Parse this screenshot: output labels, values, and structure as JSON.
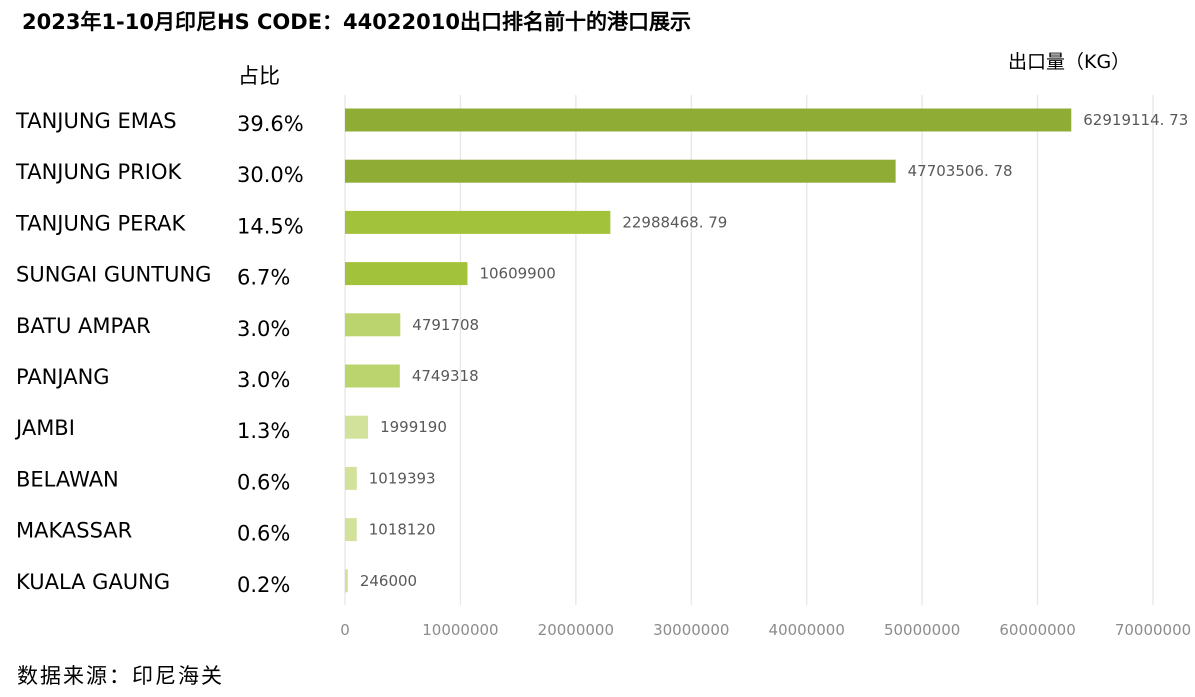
{
  "title": "2023年1-10月印尼HS CODE：44022010出口排名前十的港口展示",
  "share_header": "占比",
  "unit_label": "出口量（KG）",
  "source": "数据来源：印尼海关",
  "colors": {
    "bar_dark": "#8fac35",
    "bar_mid": "#a3c23c",
    "bar_light": "#bcd46e",
    "bar_lightest": "#d2e29b",
    "grid": "#e6e6e6",
    "data_label": "#595959",
    "tick_label": "#8c8c8c"
  },
  "chart_data": {
    "type": "bar",
    "orientation": "horizontal",
    "categories": [
      "TANJUNG EMAS",
      "TANJUNG PRIOK",
      "TANJUNG PERAK",
      "SUNGAI GUNTUNG",
      "BATU AMPAR",
      "PANJANG",
      "JAMBI",
      "BELAWAN",
      "MAKASSAR",
      "KUALA GAUNG"
    ],
    "shares": [
      "39.6%",
      "30.0%",
      "14.5%",
      "6.7%",
      "3.0%",
      "3.0%",
      "1.3%",
      "0.6%",
      "0.6%",
      "0.2%"
    ],
    "values": [
      62919114.73,
      47703506.78,
      22988468.79,
      10609900,
      4791708,
      4749318,
      1999190,
      1019393,
      1018120,
      246000
    ],
    "value_labels": [
      "62919114. 73",
      "47703506. 78",
      "22988468. 79",
      "10609900",
      "4791708",
      "4749318",
      "1999190",
      "1019393",
      "1018120",
      "246000"
    ],
    "xlim": [
      0,
      70000000
    ],
    "xticks": [
      0,
      10000000,
      20000000,
      30000000,
      40000000,
      50000000,
      60000000,
      70000000
    ],
    "xtick_labels": [
      "0",
      "10000000",
      "20000000",
      "30000000",
      "40000000",
      "50000000",
      "60000000",
      "70000000"
    ],
    "grid": true
  }
}
